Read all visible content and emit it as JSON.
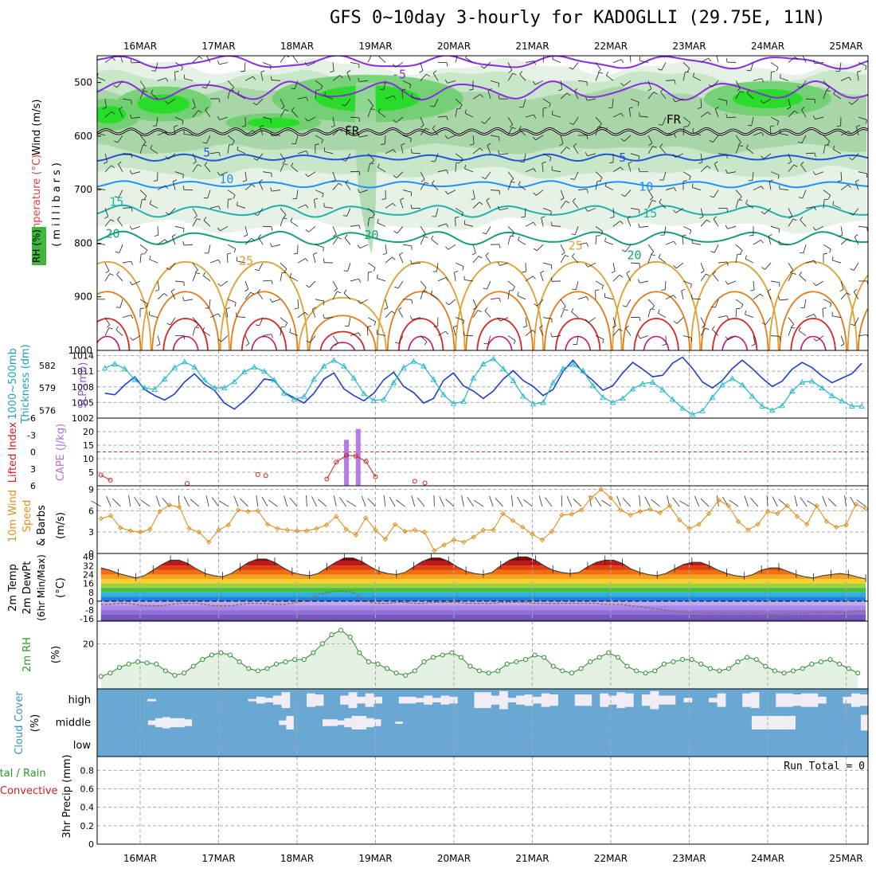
{
  "title": "GFS 0~10day 3-hourly for KADOGLLI (29.75E, 11N)",
  "dates": [
    "16MAR",
    "17MAR",
    "18MAR",
    "19MAR",
    "20MAR",
    "21MAR",
    "22MAR",
    "23MAR",
    "24MAR",
    "25MAR"
  ],
  "colors": {
    "rh_fill": [
      "#e6f2e6",
      "#c8e6c8",
      "#a8d6a8",
      "#6fcf6f",
      "#22dd22"
    ],
    "temp_purple": "#8a2be2",
    "temp_blue": "#2255dd",
    "temp_lightblue": "#1e90ff",
    "temp_teal": "#20b2aa",
    "temp_green": "#14a07a",
    "temp_orange": "#e0a030",
    "temp_red": "#dd2222",
    "thickness": "#1f3fcc",
    "slp": "#20b8c8",
    "cape": "#b57be6",
    "lifted": "#d02020",
    "wind10": "#e09020",
    "rh2m_fill": "#e4f2e4",
    "rh2m_line": "#2a8a2a",
    "cloud": "#6aa8d4",
    "cloud_gap": "#f0eef4"
  },
  "chart_data": [
    {
      "type": "cross-section",
      "panel": "upper-air",
      "ylabel_parts": [
        "Wind (m/s)",
        "Temperature (°C)",
        "RH (%)",
        "(millibars)"
      ],
      "yticks": [
        500,
        600,
        700,
        800,
        900,
        1000
      ],
      "ylim": [
        450,
        1000
      ],
      "isotherm_labels": [
        {
          "text": "-5",
          "day": 3.3,
          "p": 492
        },
        {
          "text": "FR",
          "day": 2.7,
          "p": 598
        },
        {
          "text": "FR",
          "day": 6.8,
          "p": 576
        },
        {
          "text": "5",
          "day": 0.85,
          "p": 638
        },
        {
          "text": "5",
          "day": 6.15,
          "p": 648
        },
        {
          "text": "10",
          "day": 1.1,
          "p": 688
        },
        {
          "text": "10",
          "day": 6.45,
          "p": 702
        },
        {
          "text": "15",
          "day": -0.3,
          "p": 730
        },
        {
          "text": "15",
          "day": 6.5,
          "p": 752
        },
        {
          "text": "20",
          "day": -0.35,
          "p": 790
        },
        {
          "text": "20",
          "day": 2.95,
          "p": 792
        },
        {
          "text": "20",
          "day": 6.3,
          "p": 830
        },
        {
          "text": "25",
          "day": 1.35,
          "p": 840
        },
        {
          "text": "25",
          "day": 5.55,
          "p": 812
        }
      ]
    },
    {
      "type": "line",
      "panel": "thickness-slp",
      "ylabel_left": "1000~500mb Thickness (dm)",
      "ylabel_right": "SLP (mb)",
      "left_ticks": [
        576,
        579,
        582
      ],
      "right_ticks": [
        1002,
        1005,
        1008,
        1011,
        1014
      ],
      "left_ylim": [
        575,
        584
      ],
      "right_ylim": [
        1002,
        1015
      ],
      "series": [
        {
          "name": "Thickness",
          "values": [
            578.3,
            578.1,
            579.4,
            580.5,
            578.8,
            578.0,
            577.4,
            578.2,
            579.8,
            580.9,
            579.5,
            578.7,
            577.0,
            576.2,
            577.3,
            578.6,
            580.2,
            580.0,
            578.4,
            577.7,
            577.0,
            578.3,
            580.2,
            581.0,
            578.9,
            578.0,
            577.3,
            578.3,
            580.1,
            581.1,
            579.2,
            578.4,
            577.0,
            577.6,
            580.0,
            581.0,
            579.3,
            578.6,
            577.6,
            578.6,
            580.2,
            581.3,
            580.0,
            579.2,
            578.0,
            578.8,
            581.2,
            582.7,
            581.1,
            580.0,
            578.7,
            579.3,
            581.0,
            582.4,
            581.5,
            580.5,
            580.7,
            582.3,
            583.1,
            581.6,
            579.8,
            579.0,
            580.0,
            581.6,
            582.7,
            581.6,
            580.3,
            579.2,
            579.9,
            581.5,
            582.4,
            581.7,
            580.6,
            579.7,
            580.3,
            580.9,
            582.3
          ]
        },
        {
          "name": "SLP",
          "values": [
            1011.6,
            1012.4,
            1011.5,
            1009.4,
            1007.8,
            1007.5,
            1009.5,
            1011.7,
            1012.8,
            1011.8,
            1009.3,
            1007.8,
            1007.8,
            1009.0,
            1010.9,
            1011.8,
            1011.0,
            1009.3,
            1006.8,
            1005.6,
            1006.1,
            1009.5,
            1012.0,
            1013.1,
            1012.0,
            1009.7,
            1006.7,
            1005.4,
            1005.6,
            1008.8,
            1011.7,
            1012.9,
            1012.0,
            1009.4,
            1006.5,
            1004.8,
            1005.2,
            1009.7,
            1012.4,
            1013.4,
            1011.5,
            1009.2,
            1006.2,
            1004.7,
            1005.0,
            1008.8,
            1011.5,
            1012.3,
            1011.1,
            1008.2,
            1006.0,
            1005.0,
            1005.8,
            1007.6,
            1008.6,
            1008.9,
            1007.4,
            1005.6,
            1003.9,
            1002.7,
            1003.4,
            1006.0,
            1008.4,
            1009.6,
            1008.4,
            1006.2,
            1004.3,
            1003.5,
            1004.4,
            1007.2,
            1008.9,
            1009.1,
            1007.8,
            1006.3,
            1005.3,
            1004.3,
            1004.3
          ]
        }
      ]
    },
    {
      "type": "bar",
      "panel": "lifted-cape",
      "ylabel_left": "Lifted Index",
      "ylabel_right": "CAPE (J/kg)",
      "left_ticks": [
        -6,
        -3,
        0,
        3,
        6
      ],
      "right_ticks": [
        5,
        10,
        15,
        20
      ],
      "cape_bars": [
        {
          "day": 2.63,
          "value": 17
        },
        {
          "day": 2.78,
          "value": 21
        }
      ],
      "lifted_index": [
        {
          "day": -0.5,
          "value": 4.1
        },
        {
          "day": -0.38,
          "value": 5.0
        },
        {
          "day": 0.6,
          "value": 5.6
        },
        {
          "day": 1.5,
          "value": 4.0
        },
        {
          "day": 1.6,
          "value": 4.2
        },
        {
          "day": 2.38,
          "value": 4.8
        },
        {
          "day": 2.5,
          "value": 1.8
        },
        {
          "day": 2.63,
          "value": 0.6
        },
        {
          "day": 2.75,
          "value": 0.7
        },
        {
          "day": 2.88,
          "value": 1.7
        },
        {
          "day": 3.0,
          "value": 4.4
        },
        {
          "day": 3.5,
          "value": 5.2
        },
        {
          "day": 3.63,
          "value": 5.5
        }
      ]
    },
    {
      "type": "line",
      "panel": "wind10m",
      "ylabel_parts": [
        "10m Wind",
        "Speed",
        "& Barbs",
        "(m/s)"
      ],
      "yticks": [
        0,
        3,
        6,
        9
      ],
      "ylim": [
        0,
        9.5
      ],
      "values": [
        4.9,
        5.3,
        3.6,
        3.2,
        3.0,
        3.4,
        5.9,
        6.8,
        6.5,
        3.5,
        3.0,
        1.6,
        3.3,
        4.0,
        6.1,
        5.9,
        6.0,
        4.1,
        3.5,
        3.3,
        3.2,
        3.2,
        3.5,
        4.0,
        5.2,
        3.4,
        2.6,
        5.0,
        3.3,
        2.0,
        4.1,
        3.1,
        3.3,
        3.0,
        0.4,
        1.2,
        1.9,
        1.6,
        2.3,
        3.3,
        3.3,
        5.6,
        4.6,
        3.7,
        2.7,
        1.9,
        3.1,
        5.4,
        5.5,
        6.1,
        7.8,
        9.0,
        7.8,
        6.1,
        5.4,
        5.9,
        6.2,
        5.7,
        6.7,
        4.7,
        3.5,
        4.1,
        5.6,
        7.5,
        6.7,
        4.5,
        3.3,
        4.1,
        5.9,
        5.6,
        6.7,
        5.2,
        4.1,
        6.7,
        4.5,
        3.7,
        4.0,
        6.9,
        6.3
      ]
    },
    {
      "type": "area",
      "panel": "temp2m",
      "ylabel_parts": [
        "2m Temp",
        "2m DewPt",
        "(6hr Min/Max)",
        "(°C)"
      ],
      "yticks": [
        -16,
        -8,
        0,
        8,
        16,
        24,
        32,
        40
      ],
      "ylim": [
        -18,
        43
      ],
      "temp": [
        30,
        28,
        25,
        23,
        21,
        23,
        28,
        33,
        37,
        37,
        34,
        29,
        25,
        23,
        22,
        25,
        30,
        35,
        38,
        38,
        35,
        30,
        26,
        24,
        23,
        25,
        30,
        35,
        39,
        39,
        36,
        31,
        27,
        25,
        24,
        26,
        31,
        36,
        39,
        39,
        36,
        31,
        27,
        25,
        24,
        26,
        32,
        37,
        40,
        40,
        37,
        32,
        28,
        26,
        25,
        26,
        31,
        35,
        37,
        37,
        34,
        29,
        26,
        24,
        23,
        25,
        29,
        33,
        35,
        35,
        32,
        28,
        25,
        23,
        22,
        24,
        28,
        30,
        30,
        27,
        24,
        22,
        21,
        23,
        24,
        25,
        24,
        22,
        20
      ],
      "dewpt": [
        -3,
        -3,
        -2,
        -2,
        -3,
        -4,
        -4,
        -4,
        -3,
        -2,
        -2,
        -2,
        -3,
        -4,
        -4,
        -4,
        -3,
        -2,
        -2,
        -2,
        -3,
        -3,
        -2,
        0,
        2,
        6,
        8,
        9,
        9,
        8,
        3,
        -1,
        -2,
        -2,
        -1,
        -1,
        -2,
        -2,
        -1,
        -1,
        -1,
        -1,
        -2,
        -2,
        -2,
        -2,
        -1,
        -1,
        -1,
        -1,
        -2,
        -2,
        -2,
        -2,
        -2,
        -2,
        -2,
        -2,
        -3,
        -3,
        -3,
        -4,
        -5,
        -6,
        -7,
        -8,
        -9,
        -10,
        -10,
        -11,
        -11,
        -11,
        -11,
        -11,
        -11,
        -11,
        -11,
        -12,
        -12,
        -11,
        -11,
        -11,
        -10,
        -10,
        -10,
        -10,
        -10,
        -9,
        -9
      ]
    },
    {
      "type": "area",
      "panel": "rh2m",
      "ylabel": "2m RH",
      "unit": "(%)",
      "yticks": [
        20
      ],
      "ylim": [
        0,
        30
      ],
      "values": [
        5.5,
        7,
        9.5,
        11,
        12,
        11.5,
        11,
        8,
        6,
        7,
        10,
        13,
        15,
        16,
        15,
        12,
        9,
        8,
        9,
        11,
        12,
        13,
        13,
        16,
        20,
        24,
        26,
        23,
        16,
        12,
        11,
        9,
        7,
        6,
        8,
        12,
        14,
        15,
        16,
        14,
        10,
        8,
        7,
        8,
        11,
        12,
        13,
        15,
        14,
        10,
        8,
        7,
        9,
        12,
        14,
        16,
        14,
        10,
        8,
        7,
        8,
        11,
        12,
        13,
        13,
        11,
        9,
        8,
        9,
        12,
        14,
        13,
        10,
        8,
        7,
        8,
        9,
        11,
        12,
        13,
        11,
        9,
        7
      ]
    },
    {
      "type": "heatmap",
      "panel": "cloud",
      "ylabel": "Cloud Cover",
      "unit": "(%)",
      "rows": [
        "high",
        "middle",
        "low"
      ],
      "high": [
        0,
        0,
        0,
        0,
        0,
        0,
        10,
        0,
        0,
        0,
        0,
        0,
        0,
        0,
        0,
        0,
        0,
        0,
        10,
        30,
        20,
        40,
        70,
        0,
        0,
        60,
        50,
        0,
        0,
        40,
        70,
        30,
        60,
        30,
        0,
        0,
        30,
        30,
        20,
        40,
        20,
        40,
        30,
        0,
        0,
        70,
        70,
        40,
        80,
        20,
        40,
        50,
        30,
        60,
        50,
        0,
        0,
        50,
        50,
        0,
        60,
        40,
        70,
        60,
        0,
        50,
        80,
        40,
        40,
        0,
        20,
        0,
        0,
        20,
        60,
        0,
        0,
        60,
        70,
        0,
        0,
        60,
        60,
        50,
        60,
        60,
        30,
        0,
        0,
        30,
        60,
        50
      ],
      "middle": [
        0,
        0,
        0,
        0,
        0,
        0,
        0,
        20,
        40,
        50,
        40,
        40,
        30,
        0,
        0,
        0,
        0,
        0,
        0,
        0,
        0,
        0,
        0,
        0,
        0,
        20,
        60,
        0,
        0,
        0,
        0,
        30,
        30,
        20,
        40,
        60,
        60,
        40,
        30,
        0,
        0,
        10,
        0,
        0,
        0,
        0,
        0,
        0,
        0,
        0,
        0,
        0,
        0,
        0,
        0,
        0,
        0,
        0,
        0,
        0,
        0,
        0,
        0,
        0,
        0,
        0,
        0,
        0,
        0,
        0,
        0,
        0,
        0,
        0,
        0,
        0,
        0,
        0,
        0,
        0,
        0,
        0,
        0,
        0,
        0,
        0,
        0,
        0,
        0,
        0,
        60,
        60,
        60,
        60,
        60,
        60,
        0,
        0,
        0,
        0,
        0,
        0,
        0,
        0,
        0,
        70
      ],
      "low": [
        0,
        0,
        0,
        0,
        0,
        0,
        0,
        0,
        0,
        0,
        0,
        0,
        0,
        0,
        0,
        0,
        0,
        0,
        0,
        0,
        0,
        0,
        0,
        0,
        0,
        0,
        0,
        0,
        0,
        0,
        0,
        0,
        0,
        0,
        0,
        0,
        0,
        0,
        0,
        0,
        0,
        0,
        0,
        0,
        0,
        0,
        0,
        0,
        0,
        0,
        0,
        0,
        0,
        0,
        0,
        0,
        0,
        0,
        0,
        0,
        0,
        0,
        0,
        0,
        0,
        0,
        0,
        0,
        0,
        0,
        0,
        0,
        0,
        0,
        0,
        0,
        0,
        0,
        0,
        0,
        0,
        0,
        0,
        0,
        0,
        0,
        0,
        0,
        0,
        0,
        0
      ]
    },
    {
      "type": "bar",
      "panel": "precip",
      "ylabel_parts": [
        "Total / Rain",
        "Convective",
        "3hr Precip (mm)"
      ],
      "yticks": [
        0,
        0.2,
        0.4,
        0.6,
        0.8
      ],
      "ylim": [
        0,
        0.95
      ],
      "run_total": "Run Total = 0",
      "values": []
    }
  ]
}
